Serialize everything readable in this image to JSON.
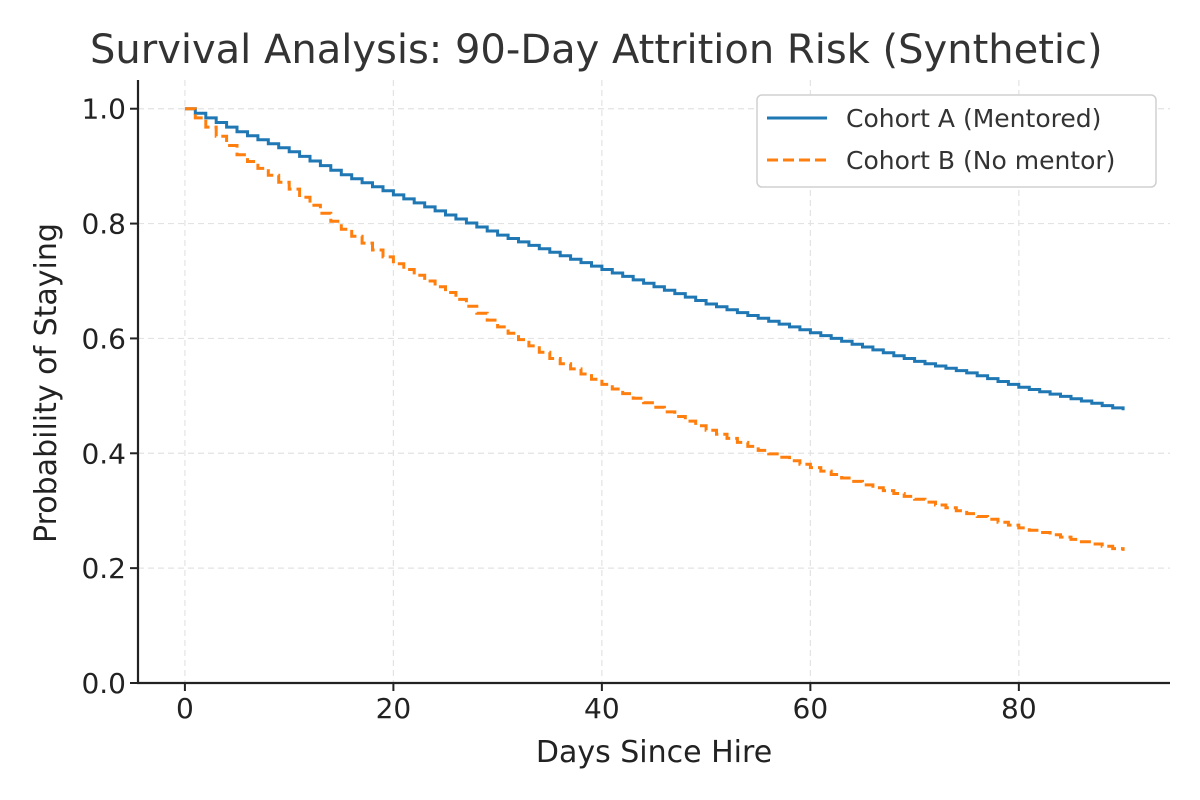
{
  "chart_data": {
    "type": "line",
    "title": "Survival Analysis: 90-Day Attrition Risk (Synthetic)",
    "xlabel": "Days Since Hire",
    "ylabel": "Probability of Staying",
    "xlim": [
      -4.5,
      94.5
    ],
    "ylim": [
      0.0,
      1.05
    ],
    "x_ticks": [
      0,
      20,
      40,
      60,
      80
    ],
    "y_ticks": [
      0.0,
      0.2,
      0.4,
      0.6,
      0.8,
      1.0
    ],
    "x_tick_labels": [
      "0",
      "20",
      "40",
      "60",
      "80"
    ],
    "y_tick_labels": [
      "0.0",
      "0.2",
      "0.4",
      "0.6",
      "0.8",
      "1.0"
    ],
    "grid": true,
    "legend_position": "top-right",
    "series": [
      {
        "name": "Cohort A (Mentored)",
        "color": "#1f77b4",
        "line_style": "solid",
        "step": true,
        "x": [
          0,
          5,
          10,
          15,
          20,
          25,
          30,
          35,
          40,
          45,
          50,
          55,
          60,
          65,
          70,
          75,
          80,
          85,
          90
        ],
        "y": [
          1.0,
          0.96,
          0.925,
          0.885,
          0.85,
          0.815,
          0.78,
          0.75,
          0.72,
          0.69,
          0.66,
          0.635,
          0.61,
          0.585,
          0.56,
          0.54,
          0.515,
          0.495,
          0.475
        ]
      },
      {
        "name": "Cohort B (No mentor)",
        "color": "#ff7f0e",
        "line_style": "dashed",
        "step": true,
        "x": [
          0,
          5,
          10,
          15,
          20,
          25,
          30,
          35,
          40,
          45,
          50,
          55,
          60,
          65,
          70,
          75,
          80,
          85,
          90
        ],
        "y": [
          1.0,
          0.92,
          0.86,
          0.79,
          0.73,
          0.68,
          0.62,
          0.565,
          0.52,
          0.48,
          0.44,
          0.405,
          0.375,
          0.345,
          0.32,
          0.295,
          0.27,
          0.25,
          0.23
        ]
      }
    ]
  }
}
